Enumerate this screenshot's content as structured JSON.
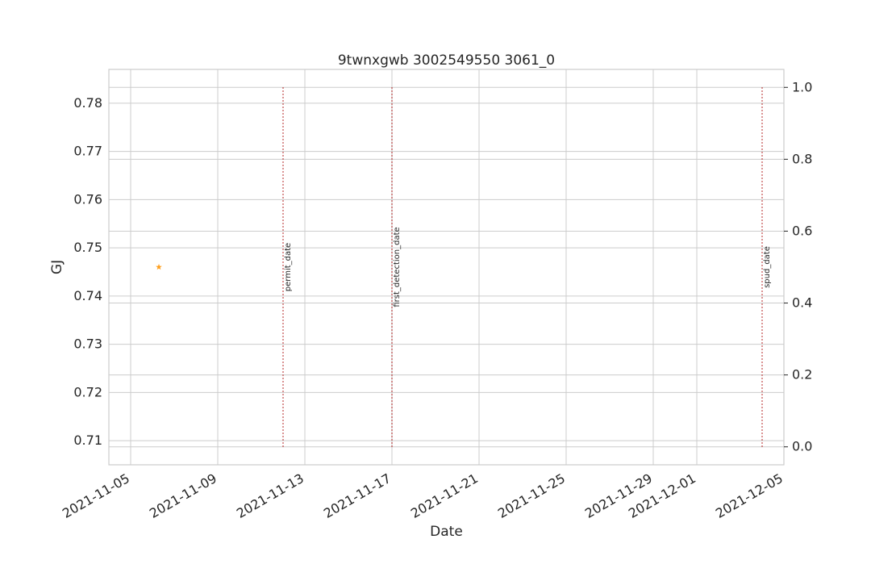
{
  "chart_data": {
    "type": "scatter",
    "title": "9twnxgwb 3002549550 3061_0",
    "xlabel": "Date",
    "ylabel": "GJ",
    "ylabel_color": "#1f77b4",
    "grid": true,
    "x_ticks": [
      "2021-11-05",
      "2021-11-09",
      "2021-11-13",
      "2021-11-17",
      "2021-11-21",
      "2021-11-25",
      "2021-11-29",
      "2021-12-01",
      "2021-12-05"
    ],
    "xlim": [
      "2021-11-04",
      "2021-12-05"
    ],
    "y_ticks": [
      "0.71",
      "0.72",
      "0.73",
      "0.74",
      "0.75",
      "0.76",
      "0.77",
      "0.78"
    ],
    "ylim": [
      0.705,
      0.787
    ],
    "y2_ticks": [
      "0.0",
      "0.2",
      "0.4",
      "0.6",
      "0.8",
      "1.0"
    ],
    "y2lim": [
      -0.05,
      1.05
    ],
    "series": [
      {
        "marker": "star",
        "color": "#ff9f1c",
        "points": [
          {
            "x": "2021-11-06",
            "y": 0.746
          }
        ]
      }
    ],
    "events": [
      {
        "label": "permit_date",
        "x": "2021-11-12",
        "color": "#b22222"
      },
      {
        "label": "first_detection_date",
        "x": "2021-11-17",
        "color": "#b22222"
      },
      {
        "label": "spud_date",
        "x": "2021-12-04",
        "color": "#b22222"
      }
    ]
  }
}
